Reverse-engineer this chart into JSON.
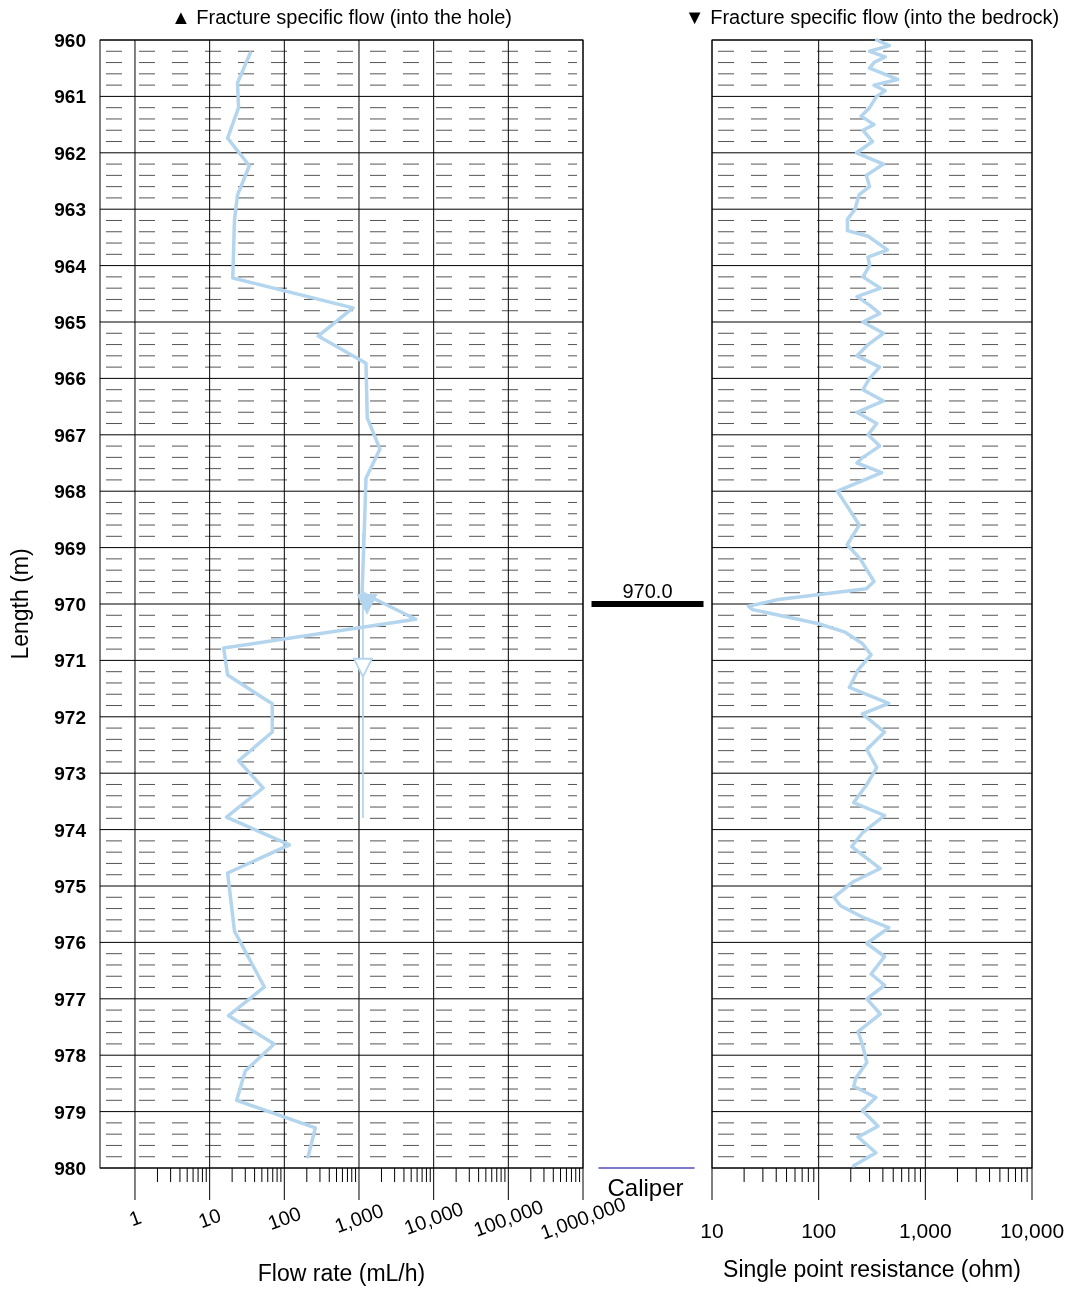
{
  "chart_data": [
    {
      "type": "line",
      "xlabel": "Flow rate (mL/h)",
      "ylabel": "Length (m)",
      "log": "x",
      "grid": true,
      "xlim": [
        0.34,
        1000000
      ],
      "xticks": [
        1,
        10,
        100,
        {
          "value": 1000,
          "label": "1,000"
        },
        {
          "value": 10000,
          "label": "10,000"
        },
        {
          "value": 100000,
          "label": "100,000"
        },
        {
          "value": 1000000,
          "label": "1,000,000"
        }
      ],
      "ylim": [
        980,
        960
      ],
      "yticks": [
        960,
        961,
        962,
        963,
        964,
        965,
        966,
        967,
        968,
        969,
        970,
        971,
        972,
        973,
        974,
        975,
        976,
        977,
        978,
        979,
        980
      ],
      "annotations": [
        "▲ Fracture specific flow (into the hole)"
      ],
      "ref_lines": [
        {
          "axis": "y",
          "value": 970.0,
          "label": "970.0",
          "color": "#000000"
        }
      ],
      "series": [
        {
          "color": "#b4d5ee",
          "x": [
            35,
            23.6,
            24.4,
            17.4,
            34,
            23.6,
            21.5,
            20.4,
            832,
            284,
            1240,
            1290,
            1905,
            1240,
            1170,
            1100,
            5750,
            15.4,
            17.4,
            69,
            69,
            24.4,
            52,
            16.8,
            117,
            17.4,
            21.5,
            54,
            17.9,
            73,
            30,
            23,
            260,
            208
          ],
          "values": [
            960.23,
            960.76,
            961.2,
            961.74,
            962.23,
            962.75,
            963.19,
            964.22,
            964.75,
            965.25,
            965.73,
            966.7,
            967.25,
            967.77,
            968.81,
            969.8,
            970.27,
            970.78,
            971.26,
            971.77,
            972.27,
            972.78,
            973.26,
            973.78,
            974.27,
            974.77,
            975.8,
            976.79,
            977.3,
            977.8,
            978.28,
            978.8,
            979.29,
            979.8
          ]
        },
        {
          "color": "#b4d5ee",
          "x": [
            1130,
            1130
          ],
          "values": [
            968.76,
            973.78
          ]
        },
        {
          "type": "scatter",
          "marker": "triangle",
          "color": "#b4d5ee",
          "x": [
            1280,
            1130
          ],
          "values": [
            970.0,
            971.13
          ]
        }
      ]
    },
    {
      "type": "line",
      "xlabel": "Single point resistance (ohm)",
      "log": "x",
      "grid": true,
      "tick_labels": "x",
      "xlim": [
        10,
        10000
      ],
      "xticks": [
        10,
        100,
        {
          "value": 1000,
          "label": "1,000"
        },
        {
          "value": 10000,
          "label": "10,000"
        }
      ],
      "ylim": [
        980,
        960
      ],
      "yticks": [
        960,
        961,
        962,
        963,
        964,
        965,
        966,
        967,
        968,
        969,
        970,
        971,
        972,
        973,
        974,
        975,
        976,
        977,
        978,
        979,
        980
      ],
      "annotations": [
        "▼ Fracture specific flow (into the bedrock)",
        "Caliper"
      ],
      "series": [
        {
          "color": "#b4d5ee",
          "x": [
            350,
            460,
            300,
            420,
            330,
            300,
            550,
            330,
            420,
            350,
            300,
            250,
            330,
            260,
            320,
            227,
            300,
            405,
            280,
            300,
            240,
            219,
            186,
            186,
            291,
            441,
            290,
            300,
            260,
            380,
            229,
            300,
            373,
            260,
            405,
            291,
            229,
            373,
            300,
            260,
            405,
            229,
            350,
            291,
            373,
            260,
            229,
            390,
            150,
            190,
            240,
            185,
            245,
            330,
            280,
            42,
            22,
            24,
            51,
            100,
            177,
            257,
            310,
            234,
            194,
            454,
            257,
            415,
            283,
            350,
            283,
            213,
            415,
            257,
            204,
            378,
            213,
            139,
            160,
            257,
            454,
            283,
            415,
            310,
            415,
            283,
            378,
            234,
            257,
            283,
            224,
            213,
            344,
            257,
            360,
            234,
            344,
            213
          ],
          "values": [
            960.0,
            960.1,
            960.2,
            960.3,
            960.4,
            960.5,
            960.7,
            960.8,
            960.9,
            961.0,
            961.2,
            961.35,
            961.5,
            961.6,
            961.8,
            962.0,
            962.1,
            962.2,
            962.4,
            962.6,
            962.74,
            963.0,
            963.18,
            963.38,
            963.48,
            963.72,
            963.85,
            964.0,
            964.2,
            964.4,
            964.55,
            964.7,
            964.85,
            965.0,
            965.2,
            965.4,
            965.6,
            965.8,
            966.0,
            966.2,
            966.4,
            966.6,
            966.8,
            967.0,
            967.2,
            967.4,
            967.5,
            967.67,
            968.0,
            968.3,
            968.6,
            968.95,
            969.2,
            969.6,
            969.73,
            969.92,
            970.04,
            970.1,
            970.23,
            970.35,
            970.5,
            970.7,
            970.9,
            971.17,
            971.48,
            971.76,
            971.95,
            972.27,
            972.58,
            972.9,
            973.2,
            973.52,
            973.75,
            974.06,
            974.3,
            974.69,
            974.92,
            975.2,
            975.35,
            975.55,
            975.74,
            976.02,
            976.25,
            976.56,
            976.76,
            977.0,
            977.27,
            977.58,
            977.81,
            978.13,
            978.4,
            978.55,
            978.75,
            978.98,
            979.26,
            979.45,
            979.73,
            979.96
          ]
        }
      ]
    }
  ]
}
